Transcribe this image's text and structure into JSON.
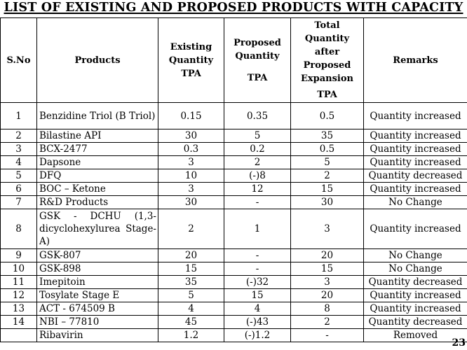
{
  "title": "LIST OF EXISTING AND PROPOSED PRODUCTS WITH CAPACITY",
  "headers": {
    "sno": "S.No",
    "products": "Products",
    "existing_l1": "Existing",
    "existing_l2": "Quantity",
    "existing_l3": "TPA",
    "proposed_l1": "Proposed",
    "proposed_l2": "Quantity",
    "proposed_l3": "TPA",
    "total_l1": "Total",
    "total_l2": "Quantity",
    "total_l3": "after",
    "total_l4": "Proposed",
    "total_l5": "Expansion",
    "total_l6": "TPA",
    "remarks": "Remarks"
  },
  "rows": [
    {
      "sno": "1",
      "product": "Benzidine Triol (B Triol)",
      "existing": "0.15",
      "proposed": "0.35",
      "total": "0.5",
      "remarks": "Quantity increased"
    },
    {
      "sno": "2",
      "product": "Bilastine API",
      "existing": "30",
      "proposed": "5",
      "total": "35",
      "remarks": "Quantity increased"
    },
    {
      "sno": "3",
      "product": "BCX-2477",
      "existing": "0.3",
      "proposed": "0.2",
      "total": "0.5",
      "remarks": "Quantity increased"
    },
    {
      "sno": "4",
      "product": "Dapsone",
      "existing": "3",
      "proposed": "2",
      "total": "5",
      "remarks": "Quantity increased"
    },
    {
      "sno": "5",
      "product": "DFQ",
      "existing": "10",
      "proposed": "(-)8",
      "total": "2",
      "remarks": "Quantity decreased"
    },
    {
      "sno": "6",
      "product": "BOC – Ketone",
      "existing": "3",
      "proposed": "12",
      "total": "15",
      "remarks": "Quantity increased"
    },
    {
      "sno": "7",
      "product": "R&D Products",
      "existing": "30",
      "proposed": "-",
      "total": "30",
      "remarks": "No Change"
    },
    {
      "sno": "8",
      "product": "GSK - DCHU (1,3-dicyclohexylurea Stage-A)",
      "existing": "2",
      "proposed": "1",
      "total": "3",
      "remarks": "Quantity increased"
    },
    {
      "sno": "9",
      "product": "GSK-807",
      "existing": "20",
      "proposed": "-",
      "total": "20",
      "remarks": "No Change"
    },
    {
      "sno": "10",
      "product": "GSK-898",
      "existing": "15",
      "proposed": "-",
      "total": "15",
      "remarks": "No Change"
    },
    {
      "sno": "11",
      "product": "Imepitoin",
      "existing": "35",
      "proposed": "(-)32",
      "total": "3",
      "remarks": "Quantity decreased"
    },
    {
      "sno": "12",
      "product": "Tosylate Stage E",
      "existing": "5",
      "proposed": "15",
      "total": "20",
      "remarks": "Quantity increased"
    },
    {
      "sno": "13",
      "product": "ACT - 674509 B",
      "existing": "4",
      "proposed": "4",
      "total": "8",
      "remarks": "Quantity increased"
    },
    {
      "sno": "14",
      "product": "NBI – 77810",
      "existing": "45",
      "proposed": "(-)43",
      "total": "2",
      "remarks": "Quantity decreased"
    },
    {
      "sno": "",
      "product": "Ribavirin",
      "existing": "1.2",
      "proposed": "(-)1.2",
      "total": "-",
      "remarks": "Removed"
    }
  ],
  "page_number": "23"
}
